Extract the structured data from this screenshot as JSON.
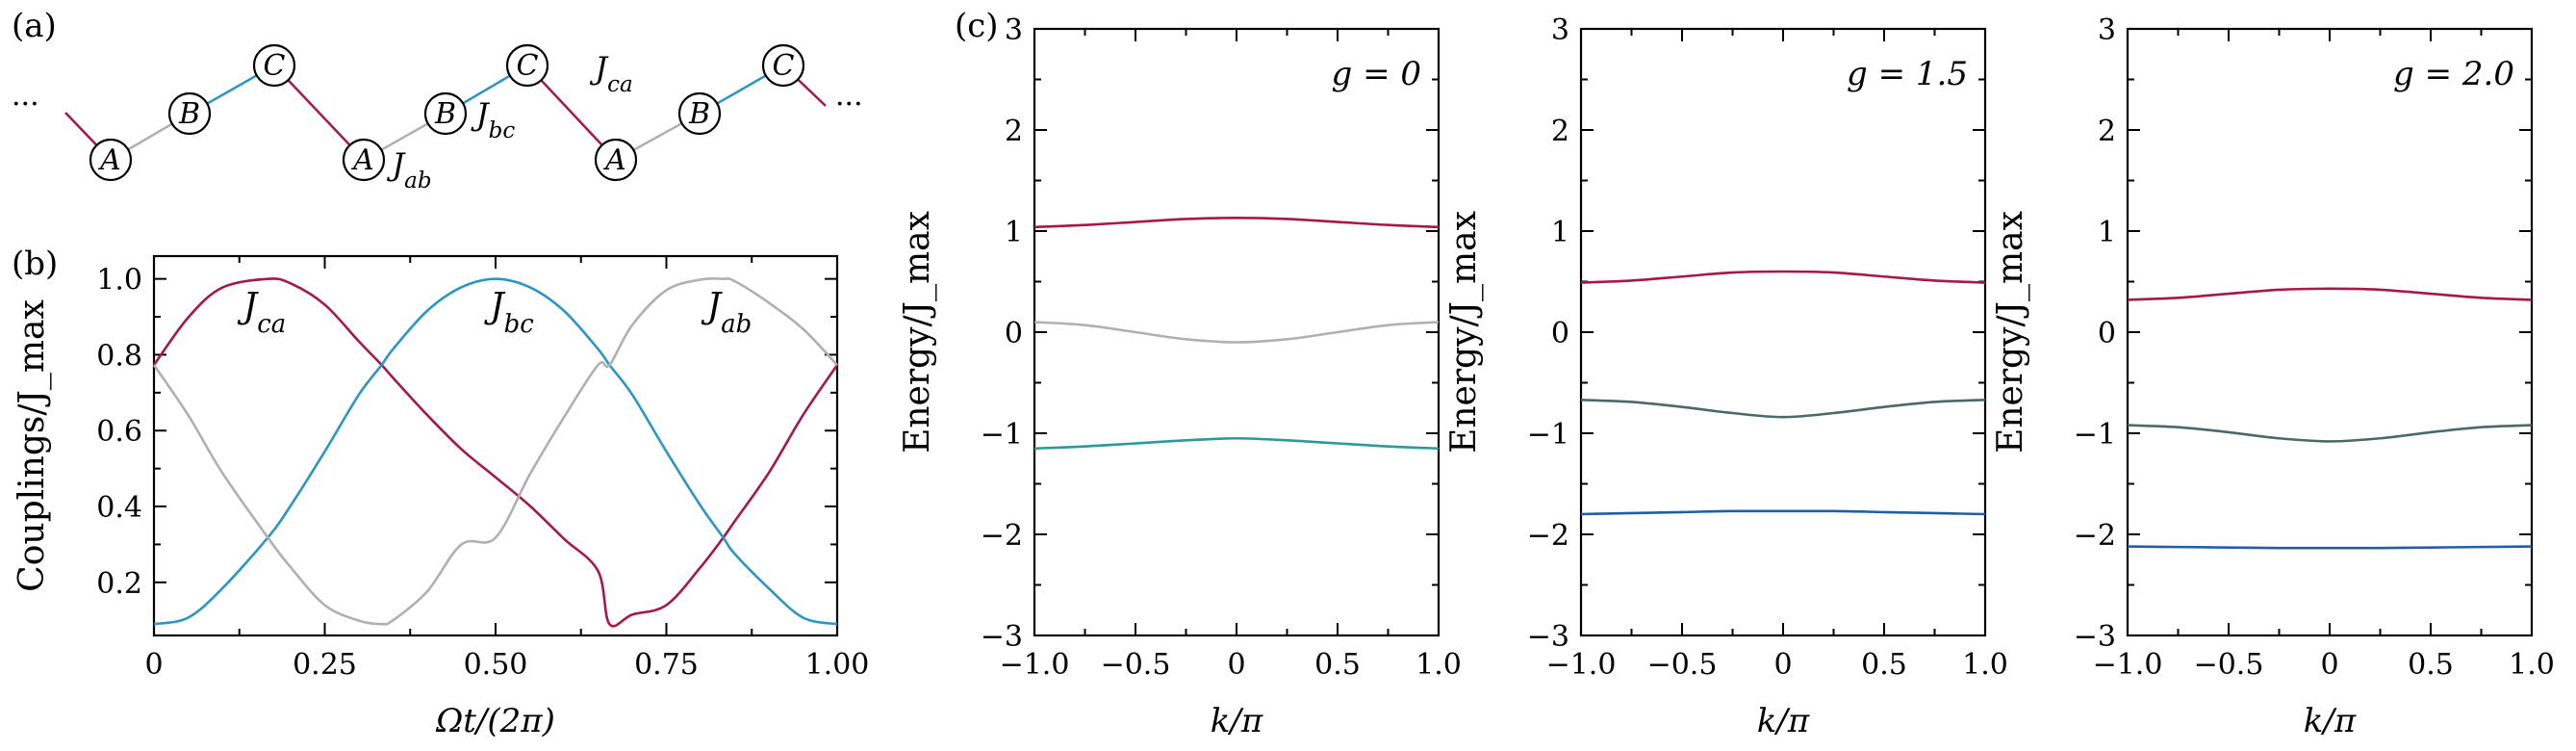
{
  "panel_labels": {
    "a": "(a)",
    "b": "(b)",
    "c": "(c)"
  },
  "colors": {
    "J_ca": "#a8174a",
    "J_bc": "#2a95c8",
    "J_ab": "#b0b0b0",
    "band_top": "#a8174a",
    "band_mid_g0": "#b0b0b0",
    "band_mid": "#4a6a68",
    "band_bottom_g0": "#2a9a9a",
    "band_bottom": "#1f5fa8"
  },
  "chain": {
    "ellipsis_left": "···",
    "ellipsis_right": "···",
    "sites": [
      "A",
      "B",
      "C",
      "A",
      "B",
      "C",
      "A",
      "B",
      "C"
    ],
    "labels": {
      "J_ab_base": "J",
      "J_ab_sub": "ab",
      "J_bc_base": "J",
      "J_bc_sub": "bc",
      "J_ca_base": "J",
      "J_ca_sub": "ca"
    }
  },
  "chart_data": [
    {
      "panel": "b",
      "type": "line",
      "xlabel": "Ωt/(2π)",
      "ylabel": "Couplings/J_max",
      "xlim": [
        0,
        1
      ],
      "ylim": [
        0.06,
        1.06
      ],
      "xticks": [
        "0",
        "0.25",
        "0.50",
        "0.75",
        "1.00"
      ],
      "xtick_values": [
        0,
        0.25,
        0.5,
        0.75,
        1.0
      ],
      "yticks": [
        "0.2",
        "0.4",
        "0.6",
        "0.8",
        "1.0"
      ],
      "ytick_values": [
        0.2,
        0.4,
        0.6,
        0.8,
        1.0
      ],
      "x": [
        0,
        0.05,
        0.1,
        0.1667,
        0.2,
        0.25,
        0.3,
        0.3333,
        0.35,
        0.4,
        0.45,
        0.5,
        0.55,
        0.6,
        0.65,
        0.6667,
        0.7,
        0.75,
        0.8,
        0.8333,
        0.85,
        0.9,
        0.95,
        1.0
      ],
      "series": [
        {
          "name": "J_ca",
          "label_base": "J",
          "label_sub": "ca",
          "color": "#a8174a",
          "values": [
            0.773,
            0.898,
            0.977,
            1.0,
            0.988,
            0.932,
            0.835,
            0.773,
            0.739,
            0.641,
            0.551,
            0.477,
            0.402,
            0.315,
            0.23,
            0.09,
            0.115,
            0.14,
            0.24,
            0.318,
            0.361,
            0.489,
            0.641,
            0.773
          ]
        },
        {
          "name": "J_bc",
          "label_base": "J",
          "label_sub": "bc",
          "color": "#2a95c8",
          "values": [
            0.09,
            0.107,
            0.184,
            0.318,
            0.402,
            0.545,
            0.695,
            0.773,
            0.815,
            0.916,
            0.978,
            1.0,
            0.978,
            0.916,
            0.815,
            0.773,
            0.695,
            0.545,
            0.402,
            0.318,
            0.275,
            0.184,
            0.107,
            0.09
          ]
        },
        {
          "name": "J_ab",
          "label_base": "J",
          "label_sub": "ab",
          "color": "#b0b0b0",
          "values": [
            0.773,
            0.641,
            0.489,
            0.318,
            0.24,
            0.14,
            0.099,
            0.09,
            0.1,
            0.176,
            0.3,
            0.318,
            0.484,
            0.635,
            0.773,
            0.773,
            0.878,
            0.97,
            0.998,
            1.0,
            0.994,
            0.937,
            0.868,
            0.773
          ]
        }
      ]
    },
    {
      "panel": "c1",
      "type": "line",
      "annotation": "g = 0",
      "xlabel": "k/π",
      "ylabel": "Energy/J_max",
      "xlim": [
        -1,
        1
      ],
      "ylim": [
        -3,
        3
      ],
      "xticks": [
        "−1.0",
        "−0.5",
        "0",
        "0.5",
        "1.0"
      ],
      "xtick_values": [
        -1,
        -0.5,
        0,
        0.5,
        1
      ],
      "yticks": [
        "−3",
        "−2",
        "−1",
        "0",
        "1",
        "2",
        "3"
      ],
      "ytick_values": [
        -3,
        -2,
        -1,
        0,
        1,
        2,
        3
      ],
      "x": [
        -1,
        -0.75,
        -0.5,
        -0.25,
        0,
        0.25,
        0.5,
        0.75,
        1
      ],
      "series": [
        {
          "color": "#a8174a",
          "values": [
            1.04,
            1.06,
            1.09,
            1.12,
            1.13,
            1.12,
            1.09,
            1.06,
            1.04
          ]
        },
        {
          "color": "#b0b0b0",
          "values": [
            0.1,
            0.07,
            0.0,
            -0.07,
            -0.1,
            -0.07,
            0.0,
            0.07,
            0.1
          ]
        },
        {
          "color": "#2a9a9a",
          "values": [
            -1.15,
            -1.13,
            -1.1,
            -1.07,
            -1.05,
            -1.07,
            -1.1,
            -1.13,
            -1.15
          ]
        }
      ]
    },
    {
      "panel": "c2",
      "type": "line",
      "annotation": "g = 1.5",
      "xlabel": "k/π",
      "ylabel": "Energy/J_max",
      "xlim": [
        -1,
        1
      ],
      "ylim": [
        -3,
        3
      ],
      "xticks": [
        "−1.0",
        "−0.5",
        "0",
        "0.5",
        "1.0"
      ],
      "xtick_values": [
        -1,
        -0.5,
        0,
        0.5,
        1
      ],
      "yticks": [
        "−3",
        "−2",
        "−1",
        "0",
        "1",
        "2",
        "3"
      ],
      "ytick_values": [
        -3,
        -2,
        -1,
        0,
        1,
        2,
        3
      ],
      "x": [
        -1,
        -0.75,
        -0.5,
        -0.25,
        0,
        0.25,
        0.5,
        0.75,
        1
      ],
      "series": [
        {
          "color": "#a8174a",
          "values": [
            0.49,
            0.51,
            0.55,
            0.59,
            0.6,
            0.59,
            0.55,
            0.51,
            0.49
          ]
        },
        {
          "color": "#4a6a68",
          "values": [
            -0.67,
            -0.69,
            -0.74,
            -0.8,
            -0.84,
            -0.8,
            -0.74,
            -0.69,
            -0.67
          ]
        },
        {
          "color": "#1f5fa8",
          "values": [
            -1.8,
            -1.79,
            -1.78,
            -1.77,
            -1.77,
            -1.77,
            -1.78,
            -1.79,
            -1.8
          ]
        }
      ]
    },
    {
      "panel": "c3",
      "type": "line",
      "annotation": "g = 2.0",
      "xlabel": "k/π",
      "ylabel": "Energy/J_max",
      "xlim": [
        -1,
        1
      ],
      "ylim": [
        -3,
        3
      ],
      "xticks": [
        "−1.0",
        "−0.5",
        "0",
        "0.5",
        "1.0"
      ],
      "xtick_values": [
        -1,
        -0.5,
        0,
        0.5,
        1
      ],
      "yticks": [
        "−3",
        "−2",
        "−1",
        "0",
        "1",
        "2",
        "3"
      ],
      "ytick_values": [
        -3,
        -2,
        -1,
        0,
        1,
        2,
        3
      ],
      "x": [
        -1,
        -0.75,
        -0.5,
        -0.25,
        0,
        0.25,
        0.5,
        0.75,
        1
      ],
      "series": [
        {
          "color": "#a8174a",
          "values": [
            0.32,
            0.34,
            0.38,
            0.42,
            0.43,
            0.42,
            0.38,
            0.34,
            0.32
          ]
        },
        {
          "color": "#4a6a68",
          "values": [
            -0.92,
            -0.94,
            -0.99,
            -1.05,
            -1.08,
            -1.05,
            -0.99,
            -0.94,
            -0.92
          ]
        },
        {
          "color": "#1f5fa8",
          "values": [
            -2.12,
            -2.125,
            -2.13,
            -2.135,
            -2.135,
            -2.135,
            -2.13,
            -2.125,
            -2.12
          ]
        }
      ]
    }
  ]
}
